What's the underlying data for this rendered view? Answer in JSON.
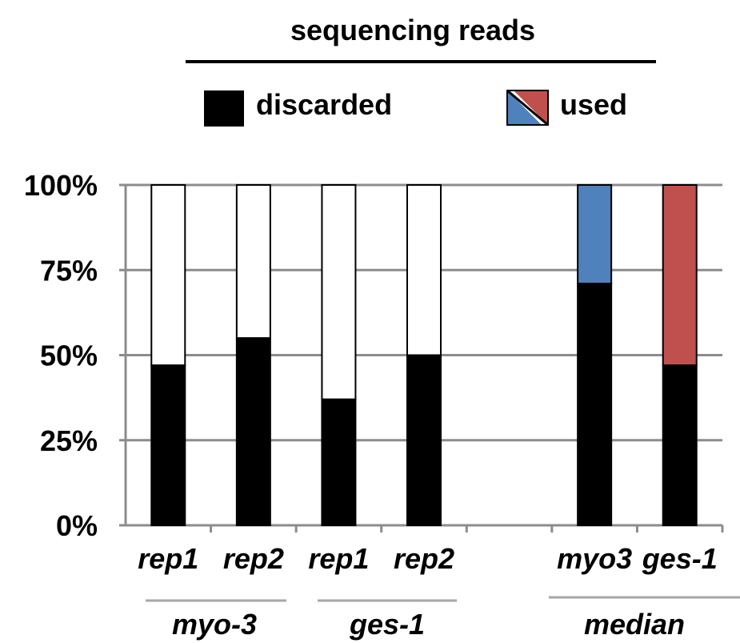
{
  "chart_data": {
    "type": "bar",
    "stacked": true,
    "title": "sequencing reads",
    "legend": [
      {
        "label": "discarded",
        "color": "#000000"
      },
      {
        "label": "used",
        "colors": [
          "#4f81bd",
          "#c0504d"
        ]
      }
    ],
    "y_ticks": [
      "0%",
      "25%",
      "50%",
      "75%",
      "100%"
    ],
    "ylim": [
      0,
      100
    ],
    "grid": true,
    "bars": [
      {
        "label": "rep1",
        "discarded": 47,
        "top_color": "#ffffff"
      },
      {
        "label": "rep2",
        "discarded": 55,
        "top_color": "#ffffff"
      },
      {
        "label": "rep1",
        "discarded": 37,
        "top_color": "#ffffff"
      },
      {
        "label": "rep2",
        "discarded": 50,
        "top_color": "#ffffff"
      },
      {
        "label": "myo3",
        "discarded": 71,
        "top_color": "#4f81bd"
      },
      {
        "label": "ges-1",
        "discarded": 47,
        "top_color": "#c0504d"
      }
    ],
    "groups": [
      "myo-3",
      "ges-1",
      "median"
    ]
  }
}
